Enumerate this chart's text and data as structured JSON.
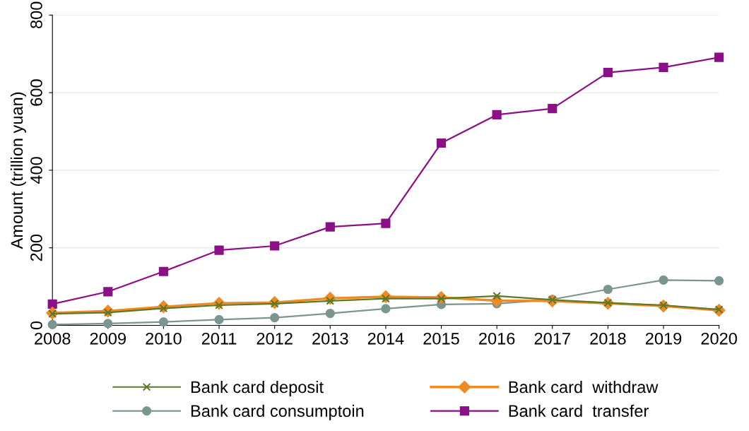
{
  "chart_data": {
    "type": "line",
    "ylabel": "Amount (trillion yuan)",
    "x": [
      2008,
      2009,
      2010,
      2011,
      2012,
      2013,
      2014,
      2015,
      2016,
      2017,
      2018,
      2019,
      2020
    ],
    "xlim": [
      2008,
      2020
    ],
    "xticks": [
      2008,
      2009,
      2010,
      2011,
      2012,
      2013,
      2014,
      2015,
      2016,
      2017,
      2018,
      2019,
      2020
    ],
    "ylim": [
      0,
      800
    ],
    "yticks": [
      0,
      200,
      400,
      600,
      800
    ],
    "grid": "y",
    "legend": "bottom",
    "series": [
      {
        "name": "Bank card deposit",
        "color": "#5a7a2a",
        "marker": "cross",
        "values": [
          30,
          33,
          44,
          52,
          56,
          63,
          69,
          69,
          76,
          66,
          58,
          52,
          41
        ]
      },
      {
        "name": "Bank card  withdraw",
        "color": "#f08a24",
        "marker": "diamond",
        "values": [
          32,
          37,
          48,
          57,
          59,
          70,
          74,
          72,
          64,
          63,
          57,
          50,
          39
        ]
      },
      {
        "name": "Bank card consumptoin",
        "color": "#7b9690",
        "marker": "circle",
        "values": [
          2,
          5,
          9,
          15,
          20,
          31,
          43,
          54,
          56,
          67,
          93,
          117,
          115
        ]
      },
      {
        "name": "Bank card  transfer",
        "color": "#8b0f87",
        "marker": "square",
        "values": [
          55,
          87,
          139,
          194,
          205,
          254,
          263,
          470,
          543,
          559,
          652,
          665,
          691
        ]
      }
    ]
  }
}
